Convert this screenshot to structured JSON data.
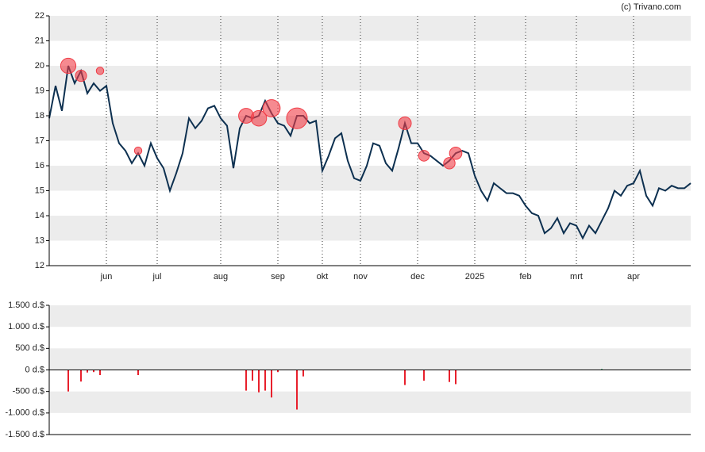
{
  "chart_data": [
    {
      "type": "line",
      "watermark": "(c) Trivano.com",
      "categories": [
        null,
        null,
        null,
        null,
        null,
        null,
        null,
        null,
        null,
        "jun",
        null,
        null,
        null,
        null,
        null,
        null,
        null,
        "jul",
        null,
        null,
        null,
        null,
        null,
        null,
        null,
        null,
        null,
        "aug",
        null,
        null,
        null,
        null,
        null,
        null,
        null,
        null,
        "sep",
        null,
        null,
        null,
        null,
        null,
        null,
        "okt",
        null,
        null,
        null,
        null,
        null,
        "nov",
        null,
        null,
        null,
        null,
        null,
        null,
        null,
        null,
        "dec",
        null,
        null,
        null,
        null,
        null,
        null,
        null,
        null,
        "2025",
        null,
        null,
        null,
        null,
        null,
        null,
        null,
        "feb",
        null,
        null,
        null,
        null,
        null,
        null,
        null,
        "mrt",
        null,
        null,
        null,
        null,
        null,
        null,
        null,
        null,
        "apr",
        null,
        null,
        null,
        null,
        null,
        null,
        null,
        null,
        null
      ],
      "series": [
        {
          "color": "#0d3050",
          "values": [
            17.9,
            19.2,
            18.2,
            20.0,
            19.3,
            19.8,
            18.9,
            19.3,
            19.0,
            19.2,
            17.7,
            16.9,
            16.6,
            16.1,
            16.5,
            16.0,
            16.9,
            16.3,
            15.9,
            15.0,
            15.7,
            16.5,
            17.9,
            17.5,
            17.8,
            18.3,
            18.4,
            17.9,
            17.6,
            15.9,
            17.5,
            18.0,
            17.9,
            18.0,
            18.6,
            18.1,
            17.7,
            17.6,
            17.2,
            18.0,
            18.0,
            17.7,
            17.8,
            15.8,
            16.4,
            17.1,
            17.3,
            16.2,
            15.5,
            15.4,
            16.0,
            16.9,
            16.8,
            16.1,
            15.8,
            16.7,
            17.7,
            16.9,
            16.9,
            16.5,
            16.4,
            16.2,
            16.0,
            16.2,
            16.5,
            16.6,
            16.5,
            15.6,
            15.0,
            14.6,
            15.3,
            15.1,
            14.9,
            14.9,
            14.8,
            14.4,
            14.1,
            14.0,
            13.3,
            13.5,
            13.9,
            13.3,
            13.7,
            13.6,
            13.1,
            13.6,
            13.3,
            13.8,
            14.3,
            15.0,
            14.8,
            15.2,
            15.3,
            15.8,
            14.8,
            14.4,
            15.1,
            15.0,
            15.2,
            15.1,
            15.1,
            15.3
          ]
        },
        {
          "type": "scatter",
          "color": "#f03c46",
          "values": [
            null,
            null,
            null,
            20.0,
            null,
            19.6,
            null,
            null,
            19.8,
            null,
            null,
            null,
            null,
            null,
            16.6,
            null,
            null,
            null,
            null,
            null,
            null,
            null,
            null,
            null,
            null,
            null,
            null,
            null,
            null,
            null,
            null,
            18.0,
            null,
            17.9,
            null,
            18.3,
            null,
            null,
            null,
            17.9,
            null,
            null,
            null,
            null,
            null,
            null,
            null,
            null,
            null,
            null,
            null,
            null,
            null,
            null,
            null,
            null,
            17.7,
            null,
            null,
            16.4,
            null,
            null,
            null,
            16.1,
            16.5,
            null,
            null,
            null,
            null,
            null,
            null,
            null,
            null,
            null,
            null,
            null,
            null,
            null,
            null,
            null,
            null,
            null,
            null,
            null,
            null,
            null,
            null,
            null,
            null,
            null,
            null,
            null,
            null,
            null,
            null,
            null,
            null,
            null,
            null,
            null,
            null,
            null
          ],
          "sizes": [
            null,
            null,
            null,
            500,
            null,
            270,
            null,
            null,
            120,
            null,
            null,
            null,
            null,
            null,
            120,
            null,
            null,
            null,
            null,
            null,
            null,
            null,
            null,
            null,
            null,
            null,
            null,
            null,
            null,
            null,
            null,
            480,
            null,
            520,
            null,
            640,
            null,
            null,
            null,
            920,
            null,
            null,
            null,
            null,
            null,
            null,
            null,
            null,
            null,
            null,
            null,
            null,
            null,
            null,
            null,
            null,
            350,
            null,
            null,
            250,
            null,
            null,
            null,
            280,
            330,
            null,
            null,
            null,
            null,
            null,
            null,
            null,
            null,
            null,
            null,
            null,
            null,
            null,
            null,
            null,
            null,
            null,
            null,
            null,
            null,
            null,
            null,
            null,
            null,
            null,
            null,
            null,
            null,
            null,
            null,
            null,
            null,
            null,
            null,
            null,
            null,
            null
          ]
        }
      ],
      "ylim": [
        12,
        22
      ],
      "yticks": [
        12,
        13,
        14,
        15,
        16,
        17,
        18,
        19,
        20,
        21,
        22
      ],
      "grid": true
    },
    {
      "type": "bar",
      "color": "#e8202c",
      "positive_color": "#1a9a5a",
      "values": [
        null,
        null,
        null,
        -500,
        null,
        -270,
        -60,
        -50,
        -120,
        null,
        null,
        null,
        null,
        null,
        -120,
        null,
        null,
        null,
        null,
        null,
        null,
        null,
        null,
        null,
        null,
        null,
        null,
        null,
        null,
        null,
        null,
        -480,
        -250,
        -520,
        -480,
        -640,
        -50,
        null,
        null,
        -920,
        -150,
        null,
        null,
        null,
        null,
        null,
        null,
        null,
        null,
        null,
        null,
        null,
        null,
        null,
        null,
        null,
        -350,
        null,
        null,
        -250,
        null,
        null,
        null,
        -280,
        -330,
        null,
        null,
        null,
        null,
        null,
        null,
        null,
        null,
        null,
        null,
        null,
        null,
        null,
        null,
        null,
        null,
        null,
        null,
        null,
        null,
        null,
        null,
        20,
        null,
        null,
        null,
        null,
        null,
        null,
        null,
        null,
        null,
        null,
        null,
        null,
        null,
        null
      ],
      "ylim": [
        -1500,
        1500
      ],
      "yticks": [
        {
          "value": -1500,
          "label": "-1.500 d.$"
        },
        {
          "value": -1000,
          "label": "-1.000 d.$"
        },
        {
          "value": -500,
          "label": "-500 d.$"
        },
        {
          "value": 0,
          "label": "0 d.$"
        },
        {
          "value": 500,
          "label": "500 d.$"
        },
        {
          "value": 1000,
          "label": "1.000 d.$"
        },
        {
          "value": 1500,
          "label": "1.500 d.$"
        }
      ],
      "grid": true
    }
  ]
}
